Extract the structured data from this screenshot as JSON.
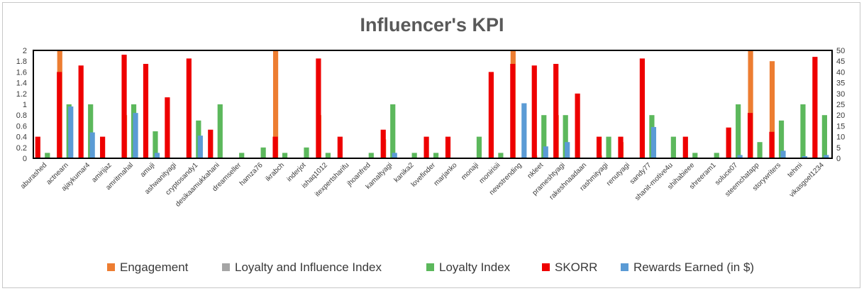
{
  "chart_data": {
    "type": "bar",
    "title": "Influencer's KPI",
    "categories": [
      "aburashed",
      "actnearn",
      "ajaykumar4",
      "amirijaz",
      "amritmahal",
      "amuji",
      "ashwanityagi",
      "cryptosandy1",
      "desikaamukkahani",
      "dreamseller",
      "hamza76",
      "ikrabch",
      "inderjot",
      "ishaq1012",
      "itexpertsharifu",
      "jhoanfred",
      "kamaltyagi",
      "kanika2",
      "lovefinder",
      "marjanko",
      "monaji",
      "monirisii",
      "newstrending",
      "nkleet",
      "prameshtyagi",
      "rakeshnaadaan",
      "rashmityagi",
      "renutyagi",
      "sandy77",
      "shanit-motive4u",
      "shihabieee",
      "shreeram1",
      "soluce07",
      "steemchatapp",
      "storywriters",
      "tehmi",
      "vikasgoel1234"
    ],
    "series": [
      {
        "name": "Engagement",
        "axis": "left",
        "color": "#ED7D31",
        "values": [
          0,
          2,
          0,
          0,
          0.8,
          0,
          0,
          0,
          0,
          0,
          0,
          2,
          0,
          0.8,
          0,
          0,
          0.35,
          0,
          0,
          0,
          0,
          0,
          2,
          0.05,
          0.8,
          0,
          0.05,
          0.3,
          0,
          0,
          0,
          0,
          0,
          2,
          1.8,
          0,
          0
        ]
      },
      {
        "name": "Loyalty and Influence Index",
        "axis": "left",
        "color": "#A5A5A5",
        "values": [
          0,
          0,
          0,
          0,
          0,
          0,
          0,
          0,
          0,
          0,
          0,
          0,
          0,
          0,
          0,
          0,
          0,
          0,
          0,
          0,
          0,
          0,
          0,
          0,
          0,
          0,
          0,
          0,
          0,
          0,
          0,
          0,
          0,
          0,
          0,
          0,
          0
        ]
      },
      {
        "name": "Loyalty Index",
        "axis": "left",
        "color": "#5CB85C",
        "values": [
          0.1,
          1,
          1,
          0,
          1,
          0.5,
          0,
          0.7,
          1,
          0.1,
          0.2,
          0.1,
          0.2,
          0.1,
          0,
          0.1,
          1,
          0.1,
          0.1,
          0,
          0.4,
          0.1,
          0,
          0.8,
          0.8,
          0,
          0.4,
          0,
          0.8,
          0.4,
          0.1,
          0.1,
          1,
          0.3,
          0.7,
          1,
          0.8
        ]
      },
      {
        "name": "SKORR",
        "axis": "left",
        "color": "#EE0000",
        "values": [
          0.4,
          1.6,
          1.72,
          0.4,
          1.92,
          1.75,
          1.13,
          1.85,
          0.53,
          0,
          0,
          0.4,
          0,
          1.85,
          0.4,
          0,
          0.53,
          0,
          0.4,
          0.4,
          0,
          1.6,
          1.75,
          1.72,
          1.75,
          1.2,
          0.4,
          0.4,
          1.85,
          0,
          0.4,
          0,
          0.57,
          0.84,
          0.49,
          0,
          1.88
        ]
      },
      {
        "name": "Rewards Earned (in $)",
        "axis": "right",
        "color": "#5B9BD5",
        "values": [
          0,
          24,
          12,
          0,
          21,
          2.5,
          0,
          10.5,
          0,
          0,
          0,
          0,
          0,
          0,
          0,
          0,
          2.5,
          0,
          0,
          0,
          0,
          0,
          25.5,
          5.5,
          7.5,
          0,
          0,
          0,
          14.5,
          0,
          0,
          0,
          1.5,
          0,
          3.5,
          1,
          1.5
        ]
      }
    ],
    "y_left": {
      "min": 0,
      "max": 2,
      "ticks": [
        "0",
        "0.2",
        "0.4",
        "0.6",
        "0.8",
        "1",
        "1.2",
        "1.4",
        "1.6",
        "1.8",
        "2"
      ]
    },
    "y_right": {
      "min": 0,
      "max": 50,
      "ticks": [
        "0",
        "5",
        "10",
        "15",
        "20",
        "25",
        "30",
        "35",
        "40",
        "45",
        "50"
      ]
    },
    "legend": "bottom",
    "grid": false
  }
}
